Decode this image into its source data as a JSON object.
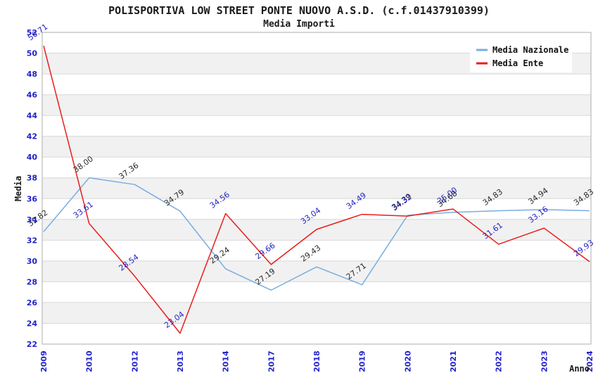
{
  "header": {
    "title": "POLISPORTIVA LOW STREET PONTE NUOVO A.S.D. (c.f.01437910399)",
    "subtitle": "Media Importi"
  },
  "chart_data": {
    "type": "line",
    "title": "POLISPORTIVA LOW STREET PONTE NUOVO A.S.D. (c.f.01437910399)",
    "subtitle": "Media Importi",
    "xlabel": "Anno",
    "ylabel": "Media",
    "ylim": [
      22,
      52
    ],
    "ytick_step": 2,
    "yticks": [
      52,
      50,
      48,
      46,
      44,
      42,
      40,
      38,
      36,
      34,
      32,
      30,
      28,
      26,
      24,
      22
    ],
    "grid": "horizontal gridlines with alternating gray bands",
    "legend_position": "top-right",
    "categories": [
      "2009",
      "2010",
      "2012",
      "2013",
      "2014",
      "2017",
      "2018",
      "2019",
      "2020",
      "2021",
      "2022",
      "2023",
      "2024"
    ],
    "series": [
      {
        "name": "Media Nazionale",
        "color": "#79ade0",
        "label_color": "#2b2b2b",
        "values": [
          32.82,
          38.0,
          37.36,
          34.79,
          29.24,
          27.19,
          29.43,
          27.71,
          34.39,
          34.68,
          34.83,
          34.94,
          34.83
        ],
        "labels": [
          "32.82",
          "38.00",
          "37.36",
          "34.79",
          "29.24",
          "27.19",
          "29.43",
          "27.71",
          "34.39",
          "34.68",
          "34.83",
          "34.94",
          "34.83"
        ]
      },
      {
        "name": "Media Ente",
        "color": "#ea1c1c",
        "label_color": "#2525c4",
        "values": [
          50.71,
          33.61,
          28.54,
          23.04,
          34.56,
          29.66,
          33.04,
          34.49,
          34.32,
          35.0,
          31.61,
          33.16,
          29.93
        ],
        "labels": [
          "50.71",
          "33.61",
          "28.54",
          "23.04",
          "34.56",
          "29.66",
          "33.04",
          "34.49",
          "34.32",
          "35.00",
          "31.61",
          "33.16",
          "29.93"
        ]
      }
    ],
    "colors": {
      "band": "#f1f1f1",
      "gridline": "#d8d8d8",
      "plot_border": "#adadad",
      "tick_label": "#2222cc",
      "axis_title": "#1a1a1a",
      "legend_bg": "#ffffff",
      "legend_text": "#111111"
    }
  }
}
